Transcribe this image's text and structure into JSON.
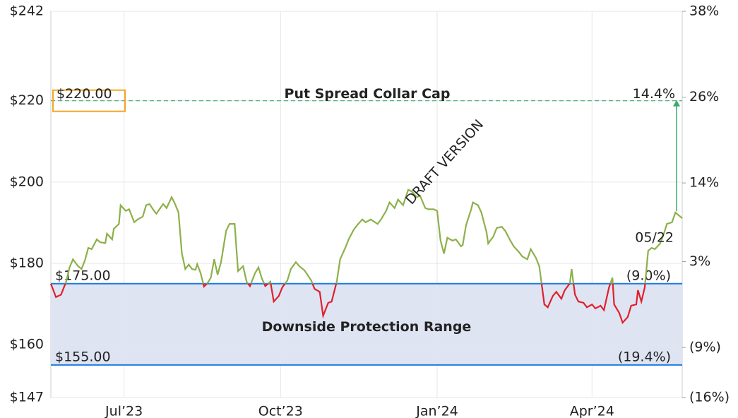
{
  "chart_data": {
    "type": "line",
    "xlim": [
      0,
      371
    ],
    "xticks": [
      {
        "value": 43,
        "label": "Jul’23"
      },
      {
        "value": 135,
        "label": "Oct’23"
      },
      {
        "value": 227,
        "label": "Jan’24"
      },
      {
        "value": 318,
        "label": "Apr’24"
      }
    ],
    "ylim": [
      147,
      242
    ],
    "yticks": [
      {
        "value": 147,
        "label": "$147"
      },
      {
        "value": 160,
        "label": "$160"
      },
      {
        "value": 180,
        "label": "$180"
      },
      {
        "value": 200,
        "label": "$200"
      },
      {
        "value": 220,
        "label": "$220"
      },
      {
        "value": 242,
        "label": "$242"
      }
    ],
    "y2lim": [
      -16,
      38
    ],
    "y2ticks": [
      {
        "value": -16,
        "label": "(16%)"
      },
      {
        "value": -9,
        "label": "(9%)"
      },
      {
        "value": 3,
        "label": "3%"
      },
      {
        "value": 14,
        "label": "14%"
      },
      {
        "value": 26,
        "label": "26%"
      },
      {
        "value": 38,
        "label": "38%"
      }
    ],
    "grid": true,
    "series": [
      {
        "color": "#8db04a",
        "below_color": "#e0202a",
        "x": [
          0,
          3,
          6,
          9,
          11,
          13,
          16,
          18,
          20,
          22,
          24,
          27,
          29,
          32,
          33,
          36,
          37,
          40,
          41,
          44,
          46,
          49,
          51,
          54,
          56,
          58,
          60,
          62,
          66,
          68,
          71,
          73,
          75,
          77,
          79,
          81,
          83,
          85,
          86,
          88,
          90,
          92,
          94,
          96,
          98,
          100,
          103,
          105,
          108,
          110,
          113,
          115,
          117,
          120,
          122,
          124,
          126,
          129,
          131,
          134,
          136,
          139,
          141,
          144,
          146,
          149,
          153,
          155,
          158,
          160,
          163,
          165,
          168,
          170,
          173,
          175,
          178,
          180,
          183,
          185,
          188,
          192,
          194,
          197,
          199,
          202,
          204,
          207,
          210,
          212,
          215,
          217,
          220,
          222,
          225,
          227,
          229,
          231,
          233,
          236,
          238,
          241,
          242,
          244,
          247,
          248,
          251,
          253,
          256,
          257,
          260,
          262,
          265,
          267,
          270,
          272,
          275,
          277,
          280,
          282,
          285,
          287,
          290,
          292,
          295,
          297,
          300,
          302,
          305,
          306,
          308,
          310,
          313,
          315,
          318,
          320,
          323,
          325,
          328,
          330,
          331,
          334,
          336,
          339,
          341,
          344,
          345,
          347,
          349,
          351,
          353,
          355,
          358,
          360,
          362,
          365,
          367,
          371
        ],
        "values": [
          175.0,
          171.7,
          172.3,
          175.5,
          179,
          181,
          179.3,
          178.6,
          180.7,
          183.8,
          183.5,
          185.9,
          185.2,
          185,
          187.3,
          185.9,
          188.5,
          189.7,
          194.3,
          192.9,
          193.3,
          190.1,
          190.8,
          191.5,
          194.3,
          194.6,
          193.3,
          192.2,
          194.6,
          193.6,
          196.3,
          194.6,
          192.5,
          182.4,
          178.6,
          179.7,
          178.6,
          178.4,
          179.8,
          177.6,
          174.3,
          175.1,
          176.5,
          181,
          177.2,
          180.3,
          188,
          189.7,
          189.7,
          178.1,
          179.3,
          175.5,
          174.4,
          177.6,
          179,
          176.3,
          174.4,
          175.5,
          170.6,
          172,
          174.1,
          175.8,
          178.6,
          180.3,
          179.3,
          178.3,
          175.8,
          173.7,
          173,
          167.1,
          170.3,
          170.6,
          175.5,
          181,
          183.8,
          185.9,
          188.3,
          189.4,
          190.8,
          190.1,
          190.8,
          189.7,
          190.8,
          192.9,
          195,
          193.6,
          195.7,
          194.3,
          198.1,
          197.7,
          196.3,
          196.6,
          193.6,
          193.3,
          193.3,
          192.9,
          185.6,
          182.4,
          186.3,
          185.6,
          185.9,
          184.2,
          184.5,
          189.4,
          193.3,
          195,
          194.3,
          192.5,
          187.7,
          184.9,
          186.6,
          188.7,
          189,
          188,
          185.6,
          184.2,
          182.8,
          181.7,
          181,
          183.5,
          181.4,
          179.3,
          169.9,
          169.2,
          172,
          173,
          171.3,
          173.4,
          175.1,
          178.6,
          172.3,
          170.6,
          170.3,
          169.2,
          169.9,
          168.9,
          169.6,
          168.5,
          174.1,
          176.5,
          169.9,
          167.8,
          165.4,
          166.8,
          169.6,
          169.9,
          173.4,
          170.6,
          174.1,
          183.1,
          183.8,
          183.5,
          184.9,
          187,
          189.7,
          190.1,
          192.5,
          191.1
        ]
      }
    ],
    "cap": {
      "value": 220,
      "label": "$220.00",
      "title": "Put Spread Collar Cap",
      "pct_label": "14.4%",
      "color": "#3aaa6e"
    },
    "floors": [
      {
        "value": 175,
        "label": "$175.00",
        "pct_label": "(9.0%)"
      },
      {
        "value": 155,
        "label": "$155.00",
        "pct_label": "(19.4%)"
      }
    ],
    "floor_color": "#1e7be0",
    "range_label": "Downside Protection Range",
    "last_label": "05/22",
    "watermark": "DRAFT VERSION"
  }
}
